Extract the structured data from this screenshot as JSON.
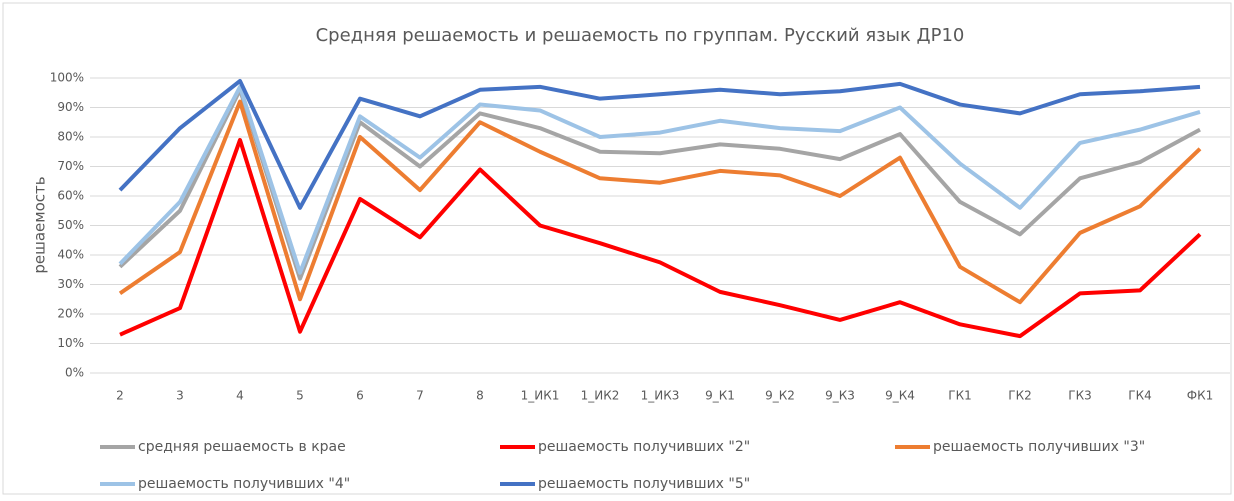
{
  "chart_data": {
    "type": "line",
    "title": "Средняя решаемость и решаемость по группам. Русский язык ДР10",
    "y_label": "решаемость",
    "categories": [
      "2",
      "3",
      "4",
      "5",
      "6",
      "7",
      "8",
      "1_ИК1",
      "1_ИК2",
      "1_ИК3",
      "9_К1",
      "9_К2",
      "9_К3",
      "9_К4",
      "ГК1",
      "ГК2",
      "ГК3",
      "ГК4",
      "ФК1"
    ],
    "ylim": [
      0,
      100
    ],
    "yticks": [
      {
        "value": 0,
        "label": "0%"
      },
      {
        "value": 10,
        "label": "10%"
      },
      {
        "value": 20,
        "label": "20%"
      },
      {
        "value": 30,
        "label": "30%"
      },
      {
        "value": 40,
        "label": "40%"
      },
      {
        "value": 50,
        "label": "50%"
      },
      {
        "value": 60,
        "label": "60%"
      },
      {
        "value": 70,
        "label": "70%"
      },
      {
        "value": 80,
        "label": "80%"
      },
      {
        "value": 90,
        "label": "90%"
      },
      {
        "value": 100,
        "label": "100%"
      }
    ],
    "grid": true,
    "legend": "bottom",
    "series": [
      {
        "name": "средняя решаемость в крае",
        "color": "#a5a5a5",
        "values": [
          36,
          55,
          96,
          32,
          85,
          70,
          88,
          83,
          75,
          74.5,
          77.5,
          76,
          72.5,
          81,
          58,
          47,
          66,
          71.5,
          82.5
        ]
      },
      {
        "name": "решаемость получивших \"2\"",
        "color": "#ff0000",
        "values": [
          13,
          22,
          79,
          14,
          59,
          46,
          69,
          50,
          44,
          37.5,
          27.5,
          23,
          18,
          24,
          16.5,
          12.5,
          27,
          28,
          47
        ]
      },
      {
        "name": "решаемость получивших \"3\"",
        "color": "#ed7d31",
        "values": [
          27,
          41,
          92,
          25,
          80,
          62,
          85,
          75,
          66,
          64.5,
          68.5,
          67,
          60,
          73,
          36,
          24,
          47.5,
          56.5,
          76
        ]
      },
      {
        "name": "решаемость получивших \"4\"",
        "color": "#9dc3e6",
        "values": [
          37,
          58,
          97,
          34,
          87,
          73,
          91,
          89,
          80,
          81.5,
          85.5,
          83,
          82,
          90,
          71,
          56,
          78,
          82.5,
          88.5
        ]
      },
      {
        "name": "решаемость получивших \"5\"",
        "color": "#4472c4",
        "values": [
          62,
          83,
          99,
          56,
          93,
          87,
          96,
          97,
          93,
          94.5,
          96,
          94.5,
          95.5,
          98,
          91,
          88,
          94.5,
          95.5,
          97
        ]
      }
    ]
  }
}
